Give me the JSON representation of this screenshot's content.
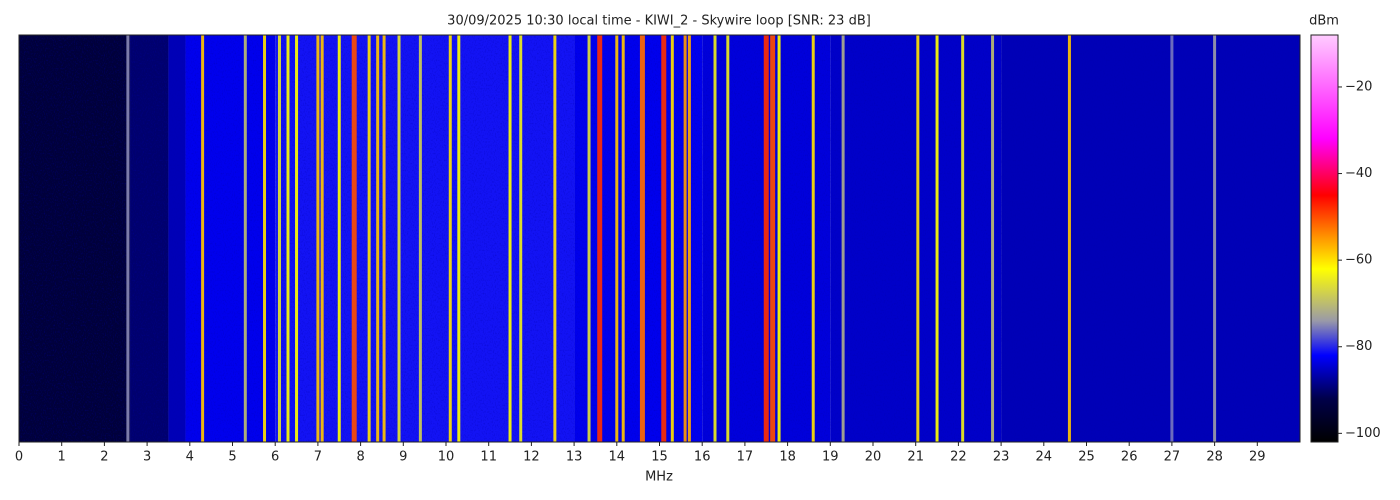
{
  "chart_data": {
    "type": "spectrogram",
    "title": "30/09/2025 10:30 local time - KIWI_2 - Skywire loop [SNR: 23 dB]",
    "xlabel": "MHz",
    "colorbar_label": "dBm",
    "xlim": [
      0,
      30
    ],
    "xticks": [
      0,
      1,
      2,
      3,
      4,
      5,
      6,
      7,
      8,
      9,
      10,
      11,
      12,
      13,
      14,
      15,
      16,
      17,
      18,
      19,
      20,
      21,
      22,
      23,
      24,
      25,
      26,
      27,
      28,
      29
    ],
    "clim": [
      -102,
      -8
    ],
    "cticks": [
      {
        "value": -20,
        "label": "−20"
      },
      {
        "value": -40,
        "label": "−40"
      },
      {
        "value": -60,
        "label": "−60"
      },
      {
        "value": -80,
        "label": "−80"
      },
      {
        "value": -100,
        "label": "−100"
      }
    ],
    "colormap": {
      "values": [
        -102,
        -92,
        -82,
        -74,
        -62,
        -55,
        -45,
        -32,
        -8
      ],
      "colors": [
        "#000000",
        "#00004a",
        "#0000ff",
        "#9a9aa8",
        "#ffff00",
        "#ff9900",
        "#ff0000",
        "#ff00ff",
        "#ffccff"
      ]
    },
    "background": {
      "x": [
        0,
        2.6,
        3.5,
        3.9,
        6,
        13,
        16,
        19,
        23
      ],
      "values": [
        -94,
        -90,
        -86,
        -83,
        -81,
        -83,
        -84,
        -85,
        -86
      ]
    },
    "x": [
      2.55,
      4.3,
      5.3,
      5.75,
      6.1,
      6.3,
      6.5,
      7.0,
      7.1,
      7.5,
      7.85,
      8.2,
      8.4,
      8.55,
      8.9,
      9.4,
      10.1,
      10.3,
      11.5,
      11.75,
      12.55,
      13.35,
      13.6,
      14.0,
      14.15,
      14.6,
      15.1,
      15.3,
      15.6,
      15.7,
      16.3,
      16.6,
      17.5,
      17.65,
      17.8,
      18.6,
      19.3,
      21.05,
      21.5,
      22.1,
      22.8,
      24.6,
      27.0,
      28.0
    ],
    "values": [
      -75,
      -58,
      -70,
      -60,
      -65,
      -62,
      -62,
      -58,
      -58,
      -62,
      -50,
      -60,
      -58,
      -58,
      -65,
      -68,
      -60,
      -62,
      -62,
      -64,
      -60,
      -66,
      -48,
      -58,
      -58,
      -52,
      -48,
      -60,
      -55,
      -56,
      -64,
      -64,
      -48,
      -50,
      -62,
      -60,
      -72,
      -60,
      -62,
      -64,
      -70,
      -58,
      -76,
      -74
    ]
  }
}
